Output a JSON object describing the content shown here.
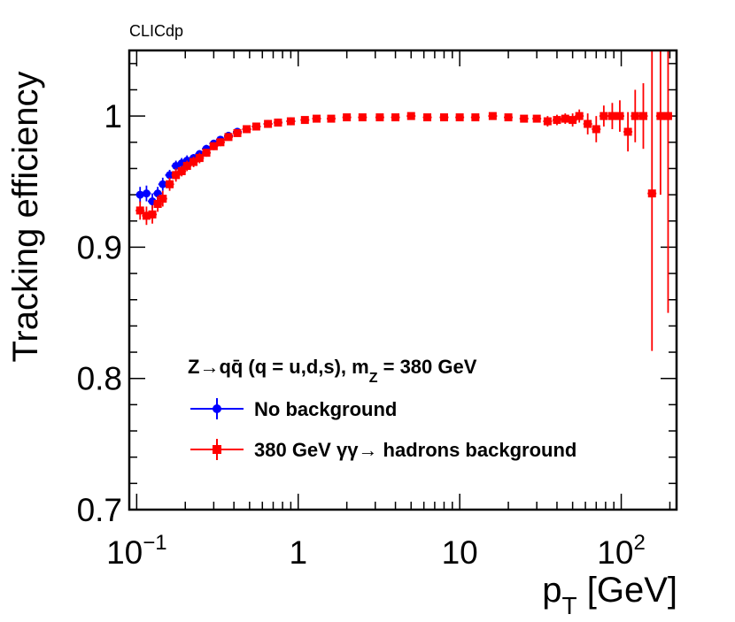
{
  "chart_data": {
    "type": "scatter",
    "experiment_tag": "CLICdp",
    "xlabel": {
      "main": "p",
      "sub": "T",
      "unit": "[GeV]"
    },
    "ylabel": "Tracking efficiency",
    "x_scale": "log",
    "xlim": [
      0.09,
      220
    ],
    "ylim": [
      0.7,
      1.05
    ],
    "grid": false,
    "y_ticks": [
      "0.7",
      "0.8",
      "0.9",
      "1"
    ],
    "x_ticks": [
      {
        "value": 0.1,
        "base": "10",
        "exp": "−1"
      },
      {
        "value": 1,
        "label": "1"
      },
      {
        "value": 10,
        "label": "10"
      },
      {
        "value": 100,
        "base": "10",
        "exp": "2"
      }
    ],
    "legend": {
      "placement": "center-left",
      "header": {
        "main": "Z→qq̄ (q = u,d,s), m",
        "sub": "Z",
        "tail": " = 380 GeV"
      },
      "entries": [
        "No background",
        "380 GeV  γγ→ hadrons background"
      ]
    },
    "series": [
      {
        "name": "No background",
        "color": "#0000ff",
        "marker": "circle",
        "points": [
          [
            0.105,
            0.94,
            0.006
          ],
          [
            0.115,
            0.941,
            0.006
          ],
          [
            0.125,
            0.935,
            0.006
          ],
          [
            0.135,
            0.941,
            0.005
          ],
          [
            0.145,
            0.948,
            0.005
          ],
          [
            0.16,
            0.955,
            0.004
          ],
          [
            0.175,
            0.962,
            0.004
          ],
          [
            0.19,
            0.964,
            0.004
          ],
          [
            0.205,
            0.966,
            0.004
          ],
          [
            0.225,
            0.968,
            0.003
          ],
          [
            0.245,
            0.971,
            0.003
          ],
          [
            0.27,
            0.975,
            0.003
          ],
          [
            0.3,
            0.979,
            0.002
          ],
          [
            0.33,
            0.982,
            0.002
          ],
          [
            0.37,
            0.985,
            0.002
          ],
          [
            0.42,
            0.988,
            0.002
          ],
          [
            0.48,
            0.99,
            0.002
          ],
          [
            0.55,
            0.992,
            0.001
          ],
          [
            0.65,
            0.994,
            0.001
          ],
          [
            0.75,
            0.995,
            0.001
          ],
          [
            0.9,
            0.996,
            0.001
          ]
        ]
      },
      {
        "name": "380 GeV  γγ→ hadrons background",
        "color": "#ff0000",
        "marker": "square",
        "points": [
          [
            0.105,
            0.928,
            0.007
          ],
          [
            0.115,
            0.924,
            0.007
          ],
          [
            0.125,
            0.925,
            0.007
          ],
          [
            0.135,
            0.933,
            0.006
          ],
          [
            0.145,
            0.937,
            0.006
          ],
          [
            0.16,
            0.948,
            0.005
          ],
          [
            0.175,
            0.955,
            0.005
          ],
          [
            0.19,
            0.958,
            0.004
          ],
          [
            0.205,
            0.962,
            0.004
          ],
          [
            0.225,
            0.965,
            0.004
          ],
          [
            0.245,
            0.968,
            0.004
          ],
          [
            0.27,
            0.972,
            0.003
          ],
          [
            0.3,
            0.977,
            0.003
          ],
          [
            0.33,
            0.98,
            0.003
          ],
          [
            0.37,
            0.984,
            0.002
          ],
          [
            0.42,
            0.987,
            0.002
          ],
          [
            0.48,
            0.99,
            0.002
          ],
          [
            0.55,
            0.992,
            0.002
          ],
          [
            0.65,
            0.994,
            0.001
          ],
          [
            0.75,
            0.995,
            0.001
          ],
          [
            0.9,
            0.996,
            0.001
          ],
          [
            1.1,
            0.997,
            0.001
          ],
          [
            1.3,
            0.998,
            0.001
          ],
          [
            1.6,
            0.998,
            0.001
          ],
          [
            2.0,
            0.999,
            0.001
          ],
          [
            2.5,
            0.999,
            0.001
          ],
          [
            3.2,
            0.999,
            0.001
          ],
          [
            4.0,
            0.999,
            0.001
          ],
          [
            5.0,
            1.0,
            0.001
          ],
          [
            6.3,
            0.999,
            0.001
          ],
          [
            8.0,
            0.999,
            0.001
          ],
          [
            10,
            0.999,
            0.001
          ],
          [
            12.5,
            0.999,
            0.001
          ],
          [
            16,
            1.0,
            0.001
          ],
          [
            20,
            0.999,
            0.001
          ],
          [
            25,
            0.998,
            0.002
          ],
          [
            30,
            0.998,
            0.002
          ],
          [
            35,
            0.996,
            0.004
          ],
          [
            40,
            0.997,
            0.004
          ],
          [
            45,
            0.998,
            0.004
          ],
          [
            50,
            0.997,
            0.005
          ],
          [
            55,
            1.0,
            0.005
          ],
          [
            62,
            0.994,
            0.008
          ],
          [
            70,
            0.99,
            0.01
          ],
          [
            78,
            1.0,
            0.008
          ],
          [
            88,
            1.0,
            0.01
          ],
          [
            98,
            1.0,
            0.012
          ],
          [
            110,
            0.988,
            0.015
          ],
          [
            122,
            1.0,
            0.02
          ],
          [
            137,
            1.0,
            0.025
          ],
          [
            155,
            0.941,
            0.12
          ],
          [
            175,
            1.0,
            0.06
          ],
          [
            195,
            1.0,
            0.15
          ]
        ]
      }
    ]
  }
}
